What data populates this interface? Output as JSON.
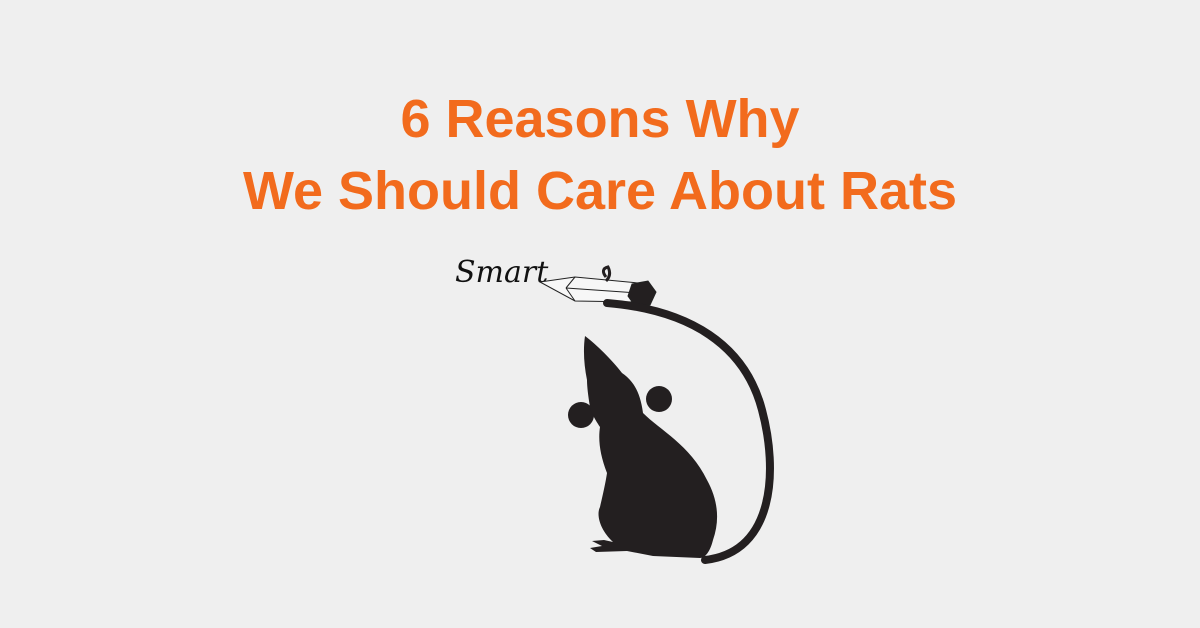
{
  "title": {
    "line1": "6 Reasons Why",
    "line2": "We Should Care About Rats"
  },
  "illustration": {
    "label": "Smart",
    "subject": "rat silhouette with pencil tail"
  },
  "colors": {
    "background": "#efefef",
    "title": "#f26b1d",
    "silhouette": "#231f20"
  }
}
